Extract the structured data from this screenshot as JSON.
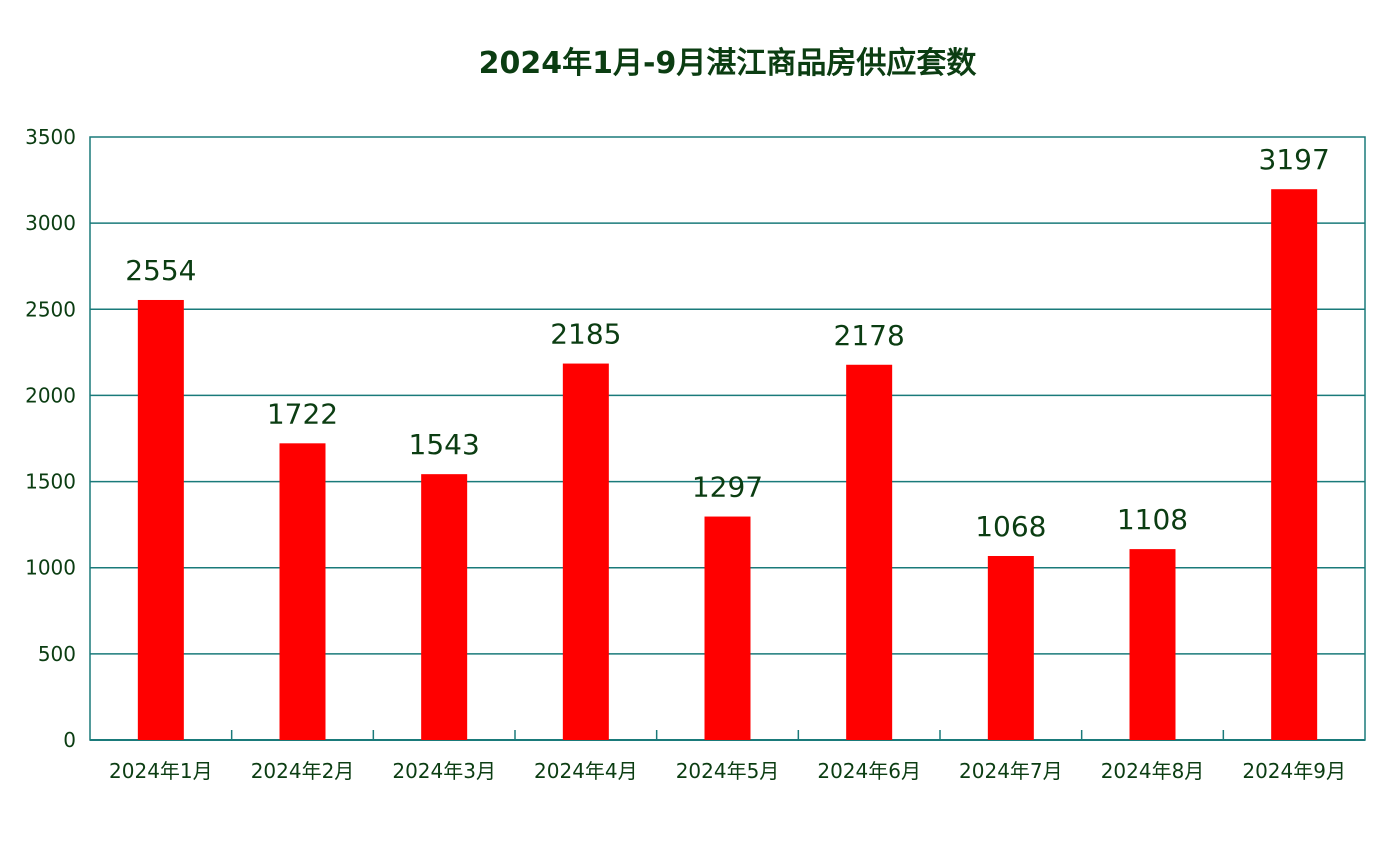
{
  "chart_data": {
    "type": "bar",
    "title": "2024年1月-9月湛江商品房供应套数",
    "categories": [
      "2024年1月",
      "2024年2月",
      "2024年3月",
      "2024年4月",
      "2024年5月",
      "2024年6月",
      "2024年7月",
      "2024年8月",
      "2024年9月"
    ],
    "values": [
      2554,
      1722,
      1543,
      2185,
      1297,
      2178,
      1068,
      1108,
      3197
    ],
    "data_labels": [
      "2554",
      "1722",
      "1543",
      "2185",
      "1297",
      "2178",
      "1068",
      "1108",
      "3197"
    ],
    "ylim": [
      0,
      3500
    ],
    "yticks": [
      0,
      500,
      1000,
      1500,
      2000,
      2500,
      3000,
      3500
    ],
    "ytick_labels": [
      "0",
      "500",
      "1000",
      "1500",
      "2000",
      "2500",
      "3000",
      "3500"
    ],
    "xlabel": "",
    "ylabel": "",
    "grid": true,
    "legend": "none",
    "colors": {
      "bar": "#ff0000",
      "axis": "#1a7a7a",
      "grid": "#1a7a7a",
      "text": "#0b3d12"
    }
  }
}
